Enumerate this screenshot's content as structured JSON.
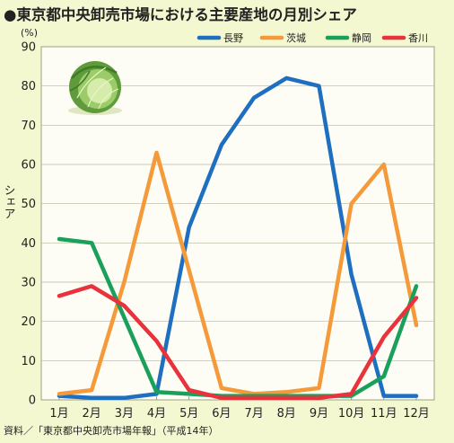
{
  "title": "●東京都中央卸売市場における主要産地の月別シェア",
  "source": "資料／「東京都中央卸売市場年報」（平成14年）",
  "icon": "cabbage-icon",
  "chart_data": {
    "type": "line",
    "title": "●東京都中央卸売市場における主要産地の月別シェア",
    "categories": [
      "1月",
      "2月",
      "3月",
      "4月",
      "5月",
      "6月",
      "7月",
      "8月",
      "9月",
      "10月",
      "11月",
      "12月"
    ],
    "ylabel": "シェア",
    "yunit": "(%)",
    "ylim": [
      0,
      90
    ],
    "yticks": [
      0,
      10,
      20,
      30,
      40,
      50,
      60,
      70,
      80,
      90
    ],
    "grid": true,
    "legend_position": "top-right",
    "series": [
      {
        "name": "長野",
        "color": "#1f6fc0",
        "values": [
          1,
          0.5,
          0.5,
          1.5,
          44,
          65,
          77,
          82,
          80,
          32,
          1,
          1
        ]
      },
      {
        "name": "茨城",
        "color": "#f59a3a",
        "values": [
          1.5,
          2.5,
          30,
          63,
          33,
          3,
          1.5,
          2,
          3,
          50,
          60,
          19
        ]
      },
      {
        "name": "静岡",
        "color": "#1aa05a",
        "values": [
          41,
          40,
          21,
          2,
          1.5,
          1,
          1,
          1,
          1,
          1,
          6,
          29
        ]
      },
      {
        "name": "香川",
        "color": "#e8323c",
        "values": [
          26.5,
          29,
          24,
          15,
          2.5,
          0.5,
          0.5,
          0.5,
          0.5,
          1.5,
          16,
          26
        ]
      }
    ]
  }
}
